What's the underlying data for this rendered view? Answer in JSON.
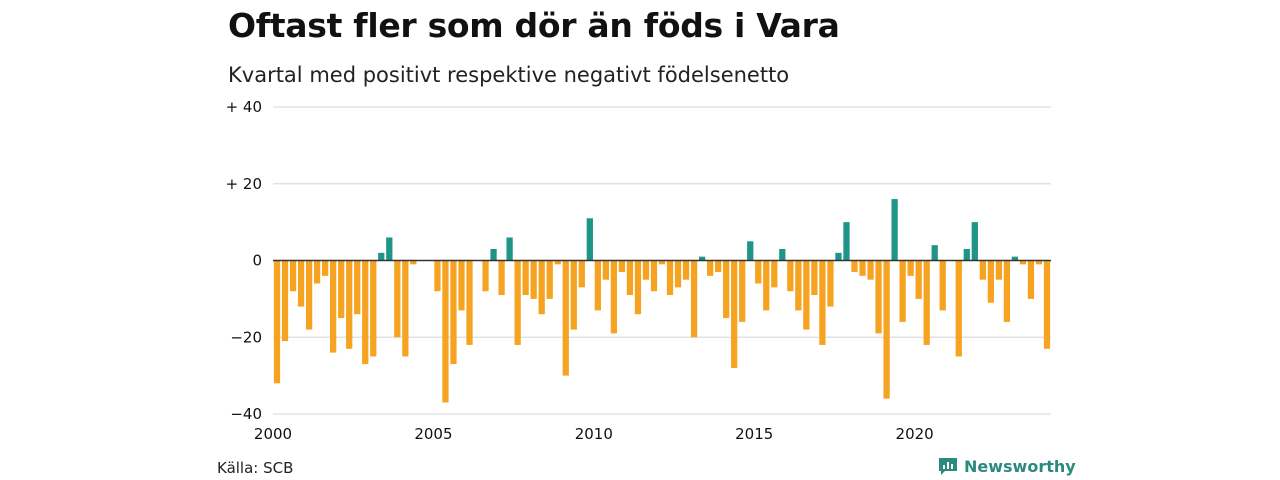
{
  "header": {
    "title": "Oftast fler som dör än föds i Vara",
    "subtitle": "Kvartal med positivt respektive negativt födelsenetto"
  },
  "footer": {
    "source": "Källa: SCB",
    "brand": "Newsworthy",
    "brand_icon": "newsworthy-logo-icon"
  },
  "colors": {
    "positive": "#1f9488",
    "negative": "#f5a320",
    "grid": "#dddddd",
    "zero_line": "#333333",
    "brand": "#2b8a7e"
  },
  "chart_data": {
    "type": "bar",
    "title": "Oftast fler som dör än föds i Vara",
    "subtitle": "Kvartal med positivt respektive negativt födelsenetto",
    "xlabel": "",
    "ylabel": "",
    "ylim": [
      -40,
      40
    ],
    "yticks": [
      {
        "value": 40,
        "label": "+ 40"
      },
      {
        "value": 20,
        "label": "+ 20"
      },
      {
        "value": 0,
        "label": "0"
      },
      {
        "value": -20,
        "label": "−20"
      },
      {
        "value": -40,
        "label": "−40"
      }
    ],
    "xticks": [
      "2000",
      "2005",
      "2010",
      "2015",
      "2020"
    ],
    "grid": true,
    "start_year": 2000,
    "values": [
      -32,
      -21,
      -8,
      -12,
      -18,
      -6,
      -4,
      -24,
      -15,
      -23,
      -14,
      -27,
      -25,
      2,
      6,
      -20,
      -25,
      -1,
      0,
      0,
      -8,
      -37,
      -27,
      -13,
      -22,
      0,
      -8,
      3,
      -9,
      6,
      -22,
      -9,
      -10,
      -14,
      -10,
      -1,
      -30,
      -18,
      -7,
      11,
      -13,
      -5,
      -19,
      -3,
      -9,
      -14,
      -5,
      -8,
      -1,
      -9,
      -7,
      -5,
      -20,
      1,
      -4,
      -3,
      -15,
      -28,
      -16,
      5,
      -6,
      -13,
      -7,
      3,
      -8,
      -13,
      -18,
      -9,
      -22,
      -12,
      2,
      10,
      -3,
      -4,
      -5,
      -19,
      -36,
      16,
      -16,
      -4,
      -10,
      -22,
      4,
      -13,
      0,
      -25,
      3,
      10,
      -5,
      -11,
      -5,
      -16,
      1,
      -1,
      -10,
      -1,
      -23
    ]
  }
}
